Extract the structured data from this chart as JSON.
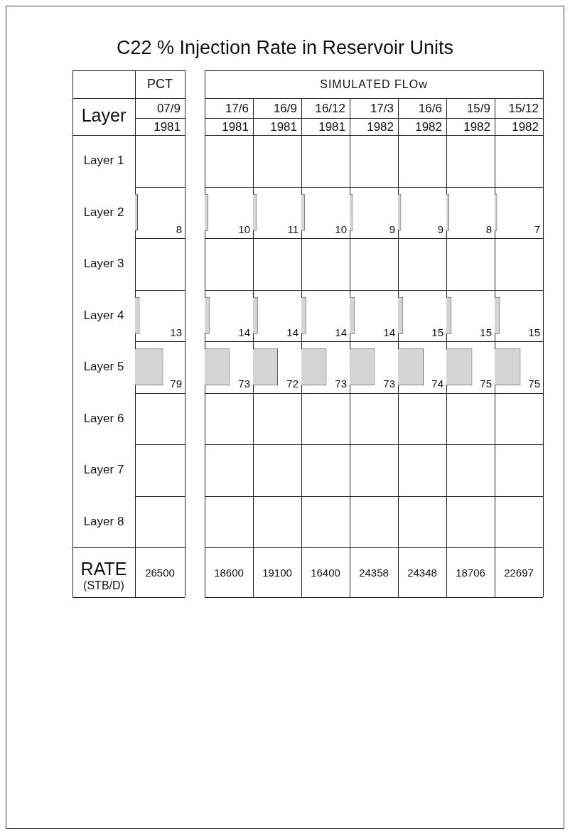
{
  "chart_data": [
    {
      "type": "other",
      "title": "C22 % Injection Rate in Reservoir Units",
      "annotations": [
        "PCT",
        "SIMULATED FLOw",
        "Layer",
        "RATE",
        "(STB/D)"
      ]
    },
    {
      "type": "bar",
      "orientation": "horizontal",
      "title": "07/9",
      "subtitle": "1981",
      "categories": [
        "Layer 1",
        "Layer 2",
        "Layer 3",
        "Layer 4",
        "Layer 5",
        "Layer 6",
        "Layer 7",
        "Layer 8"
      ],
      "values": [
        null,
        8,
        null,
        13,
        79,
        null,
        null,
        null
      ],
      "color": "#d4d4d4",
      "xlim": [
        0,
        140
      ],
      "data_labels": true,
      "tick_labels": "y",
      "annotations": [
        "26500"
      ]
    },
    {
      "type": "bar",
      "orientation": "horizontal",
      "title": "17/6",
      "subtitle": "1981",
      "categories": [
        null,
        null,
        null,
        null,
        null,
        null,
        null,
        null
      ],
      "values": [
        null,
        10,
        null,
        14,
        73,
        null,
        null,
        null
      ],
      "color": "#d4d4d4",
      "xlim": [
        0,
        140
      ],
      "data_labels": true,
      "tick_labels": false,
      "annotations": [
        "18600"
      ]
    },
    {
      "type": "bar",
      "orientation": "horizontal",
      "title": "16/9",
      "subtitle": "1981",
      "categories": [
        null,
        null,
        null,
        null,
        null,
        null,
        null,
        null
      ],
      "values": [
        null,
        11,
        null,
        14,
        72,
        null,
        null,
        null
      ],
      "color": "#d4d4d4",
      "xlim": [
        0,
        140
      ],
      "data_labels": true,
      "tick_labels": false,
      "annotations": [
        "19100"
      ]
    },
    {
      "type": "bar",
      "orientation": "horizontal",
      "title": "16/12",
      "subtitle": "1981",
      "categories": [
        null,
        null,
        null,
        null,
        null,
        null,
        null,
        null
      ],
      "values": [
        null,
        10,
        null,
        14,
        73,
        null,
        null,
        null
      ],
      "color": "#d4d4d4",
      "xlim": [
        0,
        140
      ],
      "data_labels": true,
      "tick_labels": false,
      "annotations": [
        "16400"
      ]
    },
    {
      "type": "bar",
      "orientation": "horizontal",
      "title": "17/3",
      "subtitle": "1982",
      "categories": [
        null,
        null,
        null,
        null,
        null,
        null,
        null,
        null
      ],
      "values": [
        null,
        9,
        null,
        14,
        73,
        null,
        null,
        null
      ],
      "color": "#d4d4d4",
      "xlim": [
        0,
        140
      ],
      "data_labels": true,
      "tick_labels": false,
      "annotations": [
        "24358"
      ]
    },
    {
      "type": "bar",
      "orientation": "horizontal",
      "title": "16/6",
      "subtitle": "1982",
      "categories": [
        null,
        null,
        null,
        null,
        null,
        null,
        null,
        null
      ],
      "values": [
        null,
        9,
        null,
        15,
        74,
        null,
        null,
        null
      ],
      "color": "#d4d4d4",
      "xlim": [
        0,
        140
      ],
      "data_labels": true,
      "tick_labels": false,
      "annotations": [
        "24348"
      ]
    },
    {
      "type": "bar",
      "orientation": "horizontal",
      "title": "15/9",
      "subtitle": "1982",
      "categories": [
        null,
        null,
        null,
        null,
        null,
        null,
        null,
        null
      ],
      "values": [
        null,
        8,
        null,
        15,
        75,
        null,
        null,
        null
      ],
      "color": "#d4d4d4",
      "xlim": [
        0,
        140
      ],
      "data_labels": true,
      "tick_labels": false,
      "annotations": [
        "18706"
      ]
    },
    {
      "type": "bar",
      "orientation": "horizontal",
      "title": "15/12",
      "subtitle": "1982",
      "categories": [
        null,
        null,
        null,
        null,
        null,
        null,
        null,
        null
      ],
      "values": [
        null,
        7,
        null,
        15,
        75,
        null,
        null,
        null
      ],
      "color": "#d4d4d4",
      "xlim": [
        0,
        140
      ],
      "data_labels": true,
      "tick_labels": false,
      "annotations": [
        "22697"
      ]
    }
  ]
}
